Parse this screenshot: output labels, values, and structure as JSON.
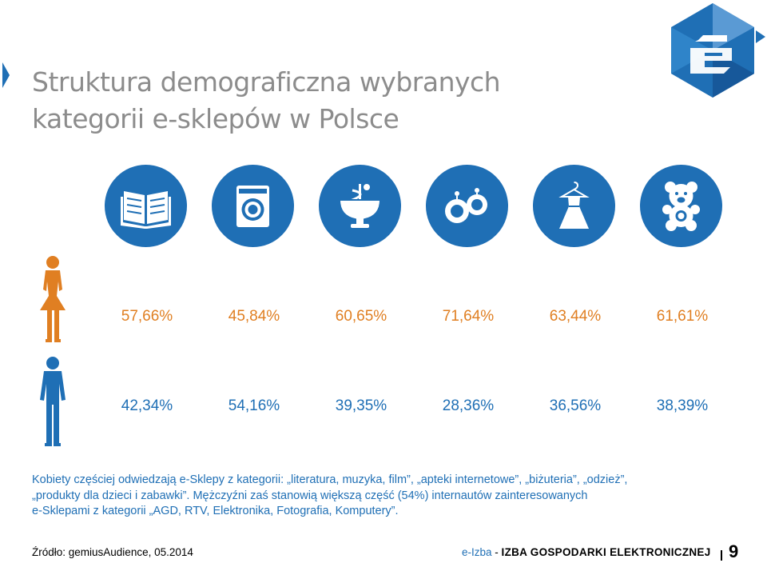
{
  "slide": {
    "title_line1": "Struktura demograficzna wybranych",
    "title_line2": "kategorii e-sklepów w Polsce"
  },
  "categories": [
    {
      "icon": "book-icon"
    },
    {
      "icon": "washing-machine-icon"
    },
    {
      "icon": "pharmacy-icon"
    },
    {
      "icon": "jewelry-icon"
    },
    {
      "icon": "dress-icon"
    },
    {
      "icon": "teddy-bear-icon"
    }
  ],
  "women": {
    "icon": "woman-icon",
    "values": [
      "57,66%",
      "45,84%",
      "60,65%",
      "71,64%",
      "63,44%",
      "61,61%"
    ]
  },
  "men": {
    "icon": "man-icon",
    "values": [
      "42,34%",
      "54,16%",
      "39,35%",
      "28,36%",
      "36,56%",
      "38,39%"
    ]
  },
  "description": {
    "line1": "Kobiety częściej  odwiedzają e-Sklepy z kategorii: „literatura, muzyka, film”, „apteki internetowe”, „biżuteria”, „odzież”,",
    "line2": "„produkty dla dzieci i zabawki”. Mężczyźni zaś stanowią większą część (54%) internautów zainteresowanych",
    "line3": "e-Sklepami z kategorii „AGD, RTV, Elektronika, Fotografia, Komputery”."
  },
  "footer": {
    "source": "Źródło: gemiusAudience, 05.2014",
    "brand_prefix": "e-Izba",
    "brand_separator": " - ",
    "brand_name": "IZBA GOSPODARKI ELEKTRONICZNEJ",
    "page_number": "9"
  },
  "colors": {
    "accent_blue": "#1f6fb5",
    "women_orange": "#e07f22",
    "title_gray": "#8c8c8c"
  }
}
